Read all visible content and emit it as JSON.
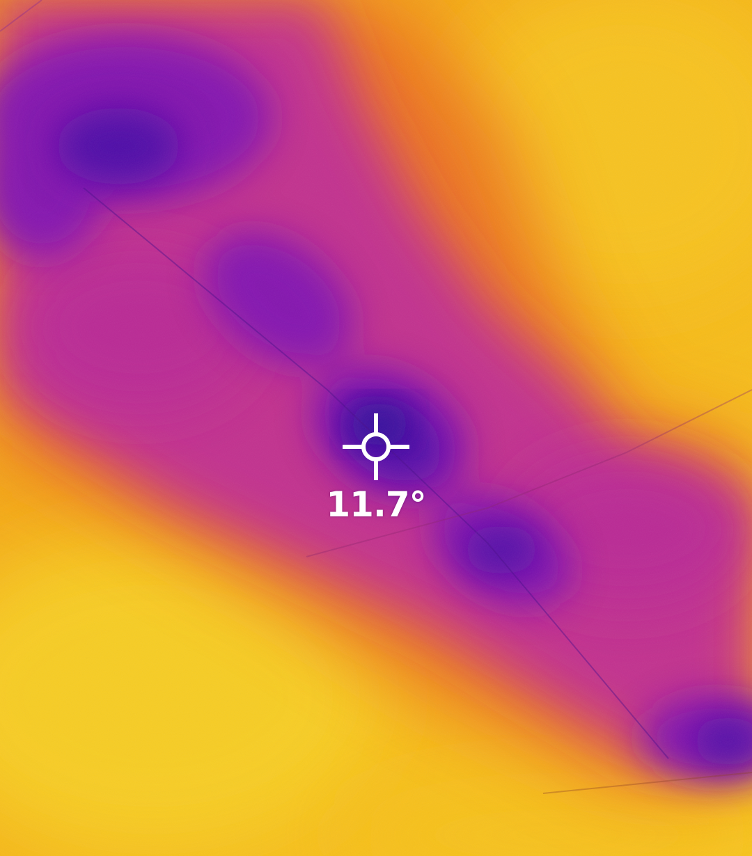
{
  "thermal_image": {
    "palette": "iron",
    "palette_colors": {
      "coldest": "#3a0a9e",
      "cold": "#6a14b8",
      "cool": "#9a1fae",
      "mid": "#c42f93",
      "warm": "#ee7a1c",
      "hot": "#f7b315",
      "hottest": "#f7cf2a"
    },
    "spot_marker": {
      "icon": "crosshair-icon",
      "color": "#ffffff"
    },
    "spot_temperature": {
      "value": 11.7,
      "text": "11.7°"
    }
  }
}
